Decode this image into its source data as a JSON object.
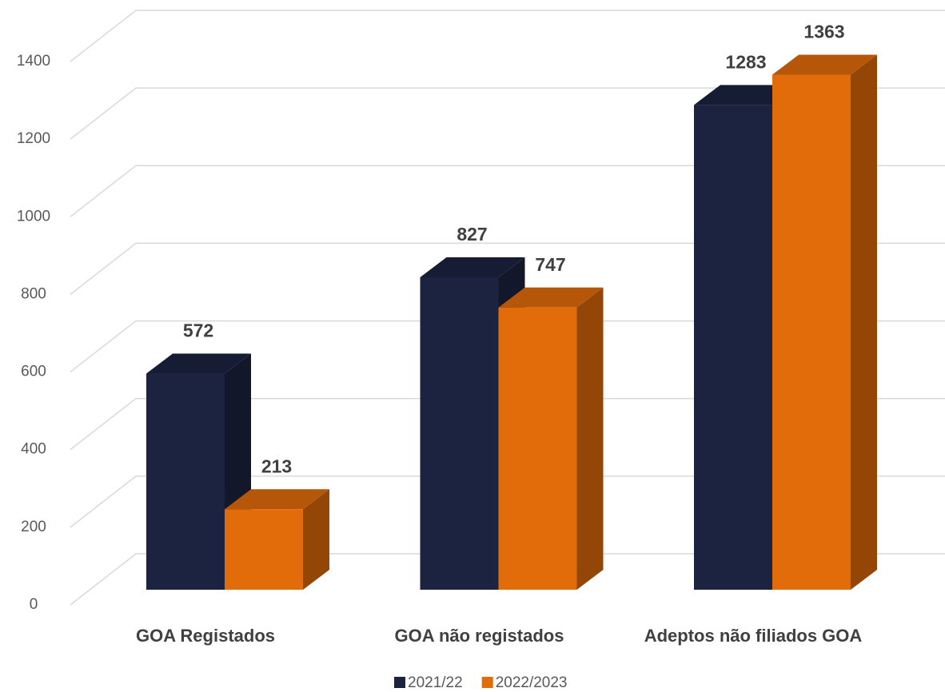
{
  "chart_data": {
    "type": "bar3d",
    "categories": [
      "GOA Registados",
      "GOA não registados",
      "Adeptos não filiados GOA"
    ],
    "series": [
      {
        "name": "2021/22",
        "color": "#1b2341",
        "values": [
          572,
          827,
          1283
        ]
      },
      {
        "name": "2022/2023",
        "color": "#e36c0a",
        "values": [
          213,
          747,
          1363
        ]
      }
    ],
    "ylim": [
      0,
      1400
    ],
    "yticks": [
      0,
      200,
      400,
      600,
      800,
      1000,
      1200,
      1400
    ],
    "grid": true,
    "legend": "bottom"
  }
}
